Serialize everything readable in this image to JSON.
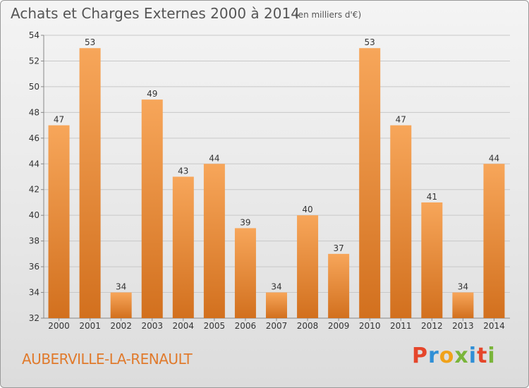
{
  "header": {
    "title": "Achats et Charges Externes 2000 à 2014",
    "unit_note": "(en milliers d'€)"
  },
  "footer": {
    "town": "AUBERVILLE-LA-RENAULT",
    "brand": "Proxiti",
    "brand_colors": [
      "#e5462b",
      "#2f8fd6",
      "#f0a21a",
      "#7ab53a",
      "#2f8fd6",
      "#e5462b",
      "#7ab53a"
    ]
  },
  "colors": {
    "bar_top": "#f7a65a",
    "bar_bottom": "#d2701e",
    "grid": "#c8c8c8",
    "axis_text": "#333333"
  },
  "chart_data": {
    "type": "bar",
    "title": "Achats et Charges Externes 2000 à 2014",
    "subtitle": "(en milliers d'€)",
    "categories": [
      "2000",
      "2001",
      "2002",
      "2003",
      "2004",
      "2005",
      "2006",
      "2007",
      "2008",
      "2009",
      "2010",
      "2011",
      "2012",
      "2013",
      "2014"
    ],
    "values": [
      47,
      53,
      34,
      49,
      43,
      44,
      39,
      34,
      40,
      37,
      53,
      47,
      41,
      34,
      44
    ],
    "ylim": [
      32,
      54
    ],
    "yticks": [
      32,
      34,
      36,
      38,
      40,
      42,
      44,
      46,
      48,
      50,
      52,
      54
    ],
    "grid": true,
    "legend": "none"
  }
}
